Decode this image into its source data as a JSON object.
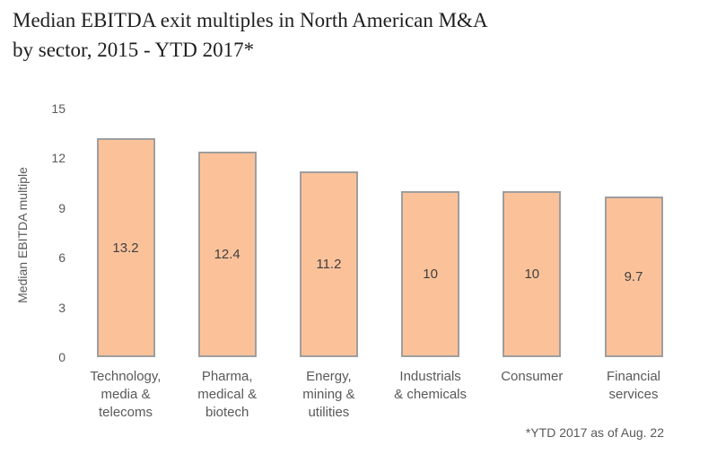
{
  "title": {
    "line1": "Median EBITDA exit multiples in North American M&A",
    "line2": "by sector, 2015 - YTD 2017*"
  },
  "footnote": "*YTD 2017 as of Aug. 22",
  "y_axis": {
    "label": "Median EBITDA multiple"
  },
  "colors": {
    "bar_fill": "#FBC29A",
    "bar_border": "#9E9E9E",
    "title_text": "#1F1F1F",
    "axis_text": "#595959",
    "value_text": "#404040",
    "background": "#FFFFFF"
  },
  "chart_data": {
    "type": "bar",
    "title": "Median EBITDA exit multiples in North American M&A by sector, 2015 - YTD 2017*",
    "categories": [
      "Technology, media & telecoms",
      "Pharma, medical & biotech",
      "Energy, mining & utilities",
      "Industrials & chemicals",
      "Consumer",
      "Financial services"
    ],
    "category_lines": [
      [
        "Technology,",
        "media &",
        "telecoms"
      ],
      [
        "Pharma,",
        "medical &",
        "biotech"
      ],
      [
        "Energy,",
        "mining &",
        "utilities"
      ],
      [
        "Industrials",
        "& chemicals"
      ],
      [
        "Consumer"
      ],
      [
        "Financial",
        "services"
      ]
    ],
    "values": [
      13.2,
      12.4,
      11.2,
      10,
      10,
      9.7
    ],
    "value_labels": [
      "13.2",
      "12.4",
      "11.2",
      "10",
      "10",
      "9.7"
    ],
    "xlabel": "",
    "ylabel": "Median EBITDA multiple",
    "ylim": [
      0,
      15
    ],
    "yticks": [
      0,
      3,
      6,
      9,
      12,
      15
    ],
    "grid": false,
    "legend_position": "none",
    "footnote": "*YTD 2017 as of Aug. 22"
  }
}
